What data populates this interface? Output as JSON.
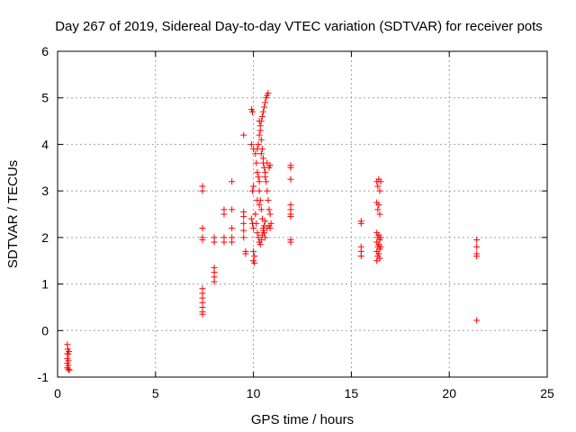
{
  "chart_data": {
    "type": "scatter",
    "title": "Day 267 of 2019, Sidereal Day-to-day VTEC variation (SDTVAR) for receiver pots",
    "xlabel": "GPS time / hours",
    "ylabel": "SDTVAR / TECUs",
    "xlim": [
      0,
      25
    ],
    "ylim": [
      -1,
      6
    ],
    "xticks": [
      "0",
      "5",
      "10",
      "15",
      "20",
      "25"
    ],
    "yticks": [
      "-1",
      "0",
      "1",
      "2",
      "3",
      "4",
      "5",
      "6"
    ],
    "grid": true,
    "marker": "plus",
    "color": "#ff0000",
    "series": [
      {
        "name": "SDTVAR",
        "points": [
          [
            0.5,
            -0.3
          ],
          [
            0.52,
            -0.4
          ],
          [
            0.55,
            -0.5
          ],
          [
            0.5,
            -0.6
          ],
          [
            0.55,
            -0.65
          ],
          [
            0.5,
            -0.7
          ],
          [
            0.55,
            -0.75
          ],
          [
            0.5,
            -0.8
          ],
          [
            0.55,
            -0.83
          ],
          [
            0.6,
            -0.85
          ],
          [
            0.5,
            -0.5
          ],
          [
            0.58,
            -0.45
          ],
          [
            7.4,
            3.1
          ],
          [
            7.4,
            3.0
          ],
          [
            7.4,
            2.2
          ],
          [
            7.4,
            2.0
          ],
          [
            7.4,
            1.95
          ],
          [
            7.4,
            0.9
          ],
          [
            7.4,
            0.8
          ],
          [
            7.4,
            0.7
          ],
          [
            7.4,
            0.6
          ],
          [
            7.4,
            0.5
          ],
          [
            7.4,
            0.4
          ],
          [
            7.4,
            0.35
          ],
          [
            8.0,
            2.0
          ],
          [
            8.0,
            1.9
          ],
          [
            8.0,
            1.35
          ],
          [
            8.0,
            1.25
          ],
          [
            8.0,
            1.15
          ],
          [
            8.0,
            1.05
          ],
          [
            8.5,
            2.6
          ],
          [
            8.5,
            2.5
          ],
          [
            8.5,
            2.0
          ],
          [
            8.5,
            1.9
          ],
          [
            8.9,
            3.2
          ],
          [
            8.9,
            2.6
          ],
          [
            8.9,
            2.2
          ],
          [
            8.9,
            2.0
          ],
          [
            8.9,
            1.9
          ],
          [
            9.5,
            4.2
          ],
          [
            9.5,
            2.55
          ],
          [
            9.5,
            2.45
          ],
          [
            9.5,
            2.3
          ],
          [
            9.5,
            2.15
          ],
          [
            9.5,
            2.0
          ],
          [
            9.6,
            1.7
          ],
          [
            9.6,
            1.65
          ],
          [
            9.9,
            4.75
          ],
          [
            9.95,
            4.7
          ],
          [
            9.9,
            4.0
          ],
          [
            10.0,
            3.9
          ],
          [
            9.95,
            3.0
          ],
          [
            10.0,
            3.1
          ],
          [
            9.9,
            2.4
          ],
          [
            9.95,
            2.3
          ],
          [
            10.0,
            2.2
          ],
          [
            10.0,
            1.7
          ],
          [
            10.05,
            1.6
          ],
          [
            10.0,
            1.5
          ],
          [
            10.05,
            1.45
          ],
          [
            10.1,
            3.8
          ],
          [
            10.15,
            3.6
          ],
          [
            10.2,
            3.4
          ],
          [
            10.25,
            3.3
          ],
          [
            10.3,
            3.2
          ],
          [
            10.3,
            3.0
          ],
          [
            10.35,
            2.8
          ],
          [
            10.4,
            2.6
          ],
          [
            10.45,
            2.4
          ],
          [
            10.5,
            2.2
          ],
          [
            10.55,
            2.1
          ],
          [
            10.6,
            2.0
          ],
          [
            10.1,
            2.5
          ],
          [
            10.15,
            2.3
          ],
          [
            10.2,
            2.1
          ],
          [
            10.25,
            2.0
          ],
          [
            10.3,
            1.9
          ],
          [
            10.35,
            1.85
          ],
          [
            10.4,
            1.95
          ],
          [
            10.45,
            2.05
          ],
          [
            10.5,
            2.15
          ],
          [
            10.55,
            2.25
          ],
          [
            10.6,
            2.35
          ],
          [
            10.2,
            3.9
          ],
          [
            10.25,
            4.0
          ],
          [
            10.3,
            4.2
          ],
          [
            10.35,
            4.4
          ],
          [
            10.4,
            4.5
          ],
          [
            10.45,
            4.6
          ],
          [
            10.5,
            4.7
          ],
          [
            10.55,
            4.8
          ],
          [
            10.6,
            4.9
          ],
          [
            10.65,
            5.0
          ],
          [
            10.7,
            5.05
          ],
          [
            10.75,
            5.1
          ],
          [
            10.3,
            4.5
          ],
          [
            10.35,
            4.3
          ],
          [
            10.4,
            4.1
          ],
          [
            10.45,
            3.9
          ],
          [
            10.5,
            3.7
          ],
          [
            10.55,
            3.5
          ],
          [
            10.6,
            3.4
          ],
          [
            10.65,
            3.2
          ],
          [
            10.7,
            3.0
          ],
          [
            10.75,
            2.8
          ],
          [
            10.8,
            2.6
          ],
          [
            10.85,
            2.5
          ],
          [
            10.4,
            3.8
          ],
          [
            10.5,
            3.6
          ],
          [
            10.6,
            3.3
          ],
          [
            10.7,
            3.6
          ],
          [
            10.8,
            3.5
          ],
          [
            10.85,
            3.55
          ],
          [
            10.7,
            2.2
          ],
          [
            10.8,
            2.25
          ],
          [
            10.85,
            2.2
          ],
          [
            10.9,
            2.3
          ],
          [
            10.2,
            2.8
          ],
          [
            10.3,
            2.7
          ],
          [
            11.9,
            3.55
          ],
          [
            11.9,
            3.5
          ],
          [
            11.9,
            3.25
          ],
          [
            11.9,
            2.7
          ],
          [
            11.9,
            2.6
          ],
          [
            11.9,
            2.5
          ],
          [
            11.9,
            2.45
          ],
          [
            11.9,
            1.95
          ],
          [
            11.9,
            1.9
          ],
          [
            15.5,
            2.35
          ],
          [
            15.5,
            2.3
          ],
          [
            15.5,
            1.8
          ],
          [
            15.5,
            1.7
          ],
          [
            15.5,
            1.6
          ],
          [
            16.3,
            3.2
          ],
          [
            16.4,
            3.25
          ],
          [
            16.35,
            3.1
          ],
          [
            16.45,
            3.0
          ],
          [
            16.3,
            2.75
          ],
          [
            16.4,
            2.7
          ],
          [
            16.35,
            2.6
          ],
          [
            16.45,
            2.5
          ],
          [
            16.3,
            2.1
          ],
          [
            16.4,
            2.05
          ],
          [
            16.35,
            2.0
          ],
          [
            16.45,
            1.95
          ],
          [
            16.3,
            1.9
          ],
          [
            16.4,
            1.85
          ],
          [
            16.35,
            1.8
          ],
          [
            16.45,
            1.75
          ],
          [
            16.3,
            1.7
          ],
          [
            16.4,
            1.65
          ],
          [
            16.35,
            1.6
          ],
          [
            16.45,
            1.55
          ],
          [
            16.3,
            1.5
          ],
          [
            16.5,
            2.0
          ],
          [
            16.5,
            1.8
          ],
          [
            16.5,
            3.2
          ],
          [
            21.4,
            1.95
          ],
          [
            21.4,
            1.8
          ],
          [
            21.4,
            1.65
          ],
          [
            21.4,
            1.6
          ],
          [
            21.4,
            0.22
          ]
        ]
      }
    ]
  }
}
